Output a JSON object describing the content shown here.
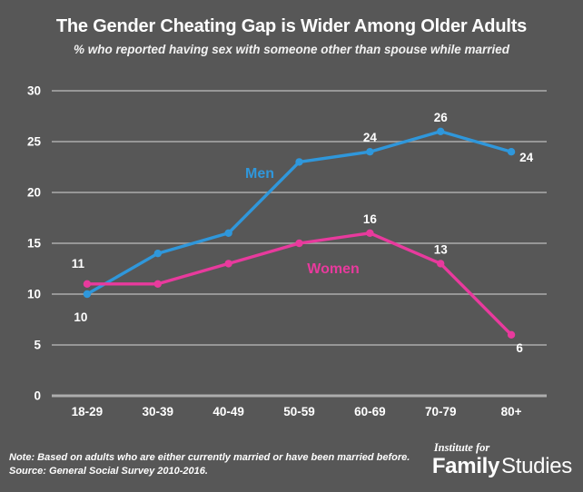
{
  "title": "The Gender Cheating Gap is Wider Among Older Adults",
  "subtitle": "% who reported having sex with someone other than spouse while married",
  "colors": {
    "background": "#575757",
    "men": "#2F97DB",
    "women": "#E83A9D",
    "gridline": "#979797",
    "axis_line": "#ADADAD",
    "text": "#FFFFFF"
  },
  "chart_data": {
    "type": "line",
    "categories": [
      "18-29",
      "30-39",
      "40-49",
      "50-59",
      "60-69",
      "70-79",
      "80+"
    ],
    "series": [
      {
        "name": "Men",
        "color_key": "men",
        "values": [
          10,
          14,
          16,
          23,
          24,
          26,
          24
        ]
      },
      {
        "name": "Women",
        "color_key": "women",
        "values": [
          11,
          11,
          13,
          15,
          16,
          13,
          6
        ]
      }
    ],
    "point_labels": [
      {
        "series": 0,
        "index": 0,
        "text": "10",
        "pos": "below-left"
      },
      {
        "series": 0,
        "index": 4,
        "text": "24",
        "pos": "above"
      },
      {
        "series": 0,
        "index": 5,
        "text": "26",
        "pos": "above"
      },
      {
        "series": 0,
        "index": 6,
        "text": "24",
        "pos": "right-below"
      },
      {
        "series": 1,
        "index": 0,
        "text": "11",
        "pos": "above-left"
      },
      {
        "series": 1,
        "index": 4,
        "text": "16",
        "pos": "above"
      },
      {
        "series": 1,
        "index": 5,
        "text": "13",
        "pos": "above"
      },
      {
        "series": 1,
        "index": 6,
        "text": "6",
        "pos": "below-right"
      }
    ],
    "y_ticks": [
      0,
      5,
      10,
      15,
      20,
      25,
      30
    ],
    "ylim": [
      0,
      30
    ],
    "grid": true,
    "legend": "inline-series-labels",
    "title": "The Gender Cheating Gap is Wider Among Older Adults",
    "xlabel": "",
    "ylabel": ""
  },
  "footer": {
    "note": "Note: Based on adults who are either currently married or have been married before.",
    "source": "Source: General Social Survey 2010-2016.",
    "logo_top": "Institute for",
    "logo_bold": "Family",
    "logo_regular": "Studies"
  }
}
